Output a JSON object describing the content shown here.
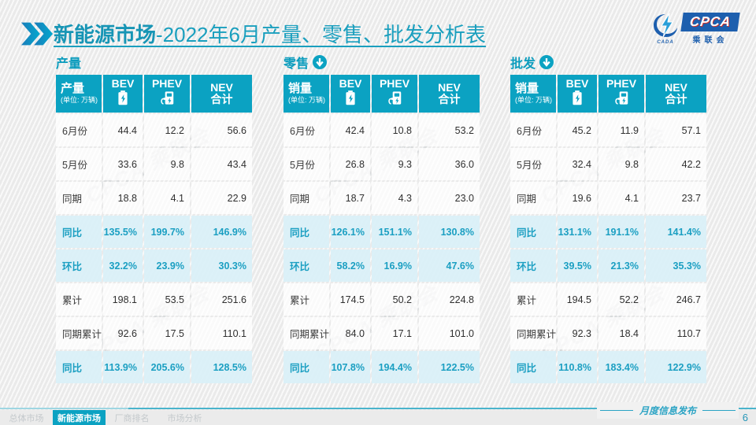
{
  "title": {
    "prefix": "新能源市场",
    "rest": "-2022年6月产量、零售、批发分析表"
  },
  "logo": {
    "cpca": "CPCA",
    "sub": "乘联会",
    "cada": "CADA"
  },
  "columns": {
    "bev": "BEV",
    "phev": "PHEV",
    "nev_line1": "NEV",
    "nev_line2": "合计"
  },
  "unit_label": "(单位: 万辆)",
  "watermark": "CPCA 乘联会",
  "colors": {
    "accent_teal": "#0ba2c2",
    "highlight_bg": "#daf0f8",
    "highlight_text": "#1b9fc2",
    "logo_blue": "#1d5fae",
    "logo_red": "#d03028"
  },
  "tables": [
    {
      "section": "产量",
      "arrow": false,
      "measure": "产量",
      "rows": [
        {
          "label": "6月份",
          "bev": "44.4",
          "phev": "12.2",
          "nev": "56.6",
          "highlight": false
        },
        {
          "label": "5月份",
          "bev": "33.6",
          "phev": "9.8",
          "nev": "43.4",
          "highlight": false
        },
        {
          "label": "同期",
          "bev": "18.8",
          "phev": "4.1",
          "nev": "22.9",
          "highlight": false
        },
        {
          "label": "同比",
          "bev": "135.5%",
          "phev": "199.7%",
          "nev": "146.9%",
          "highlight": true
        },
        {
          "label": "环比",
          "bev": "32.2%",
          "phev": "23.9%",
          "nev": "30.3%",
          "highlight": true
        },
        {
          "label": "累计",
          "bev": "198.1",
          "phev": "53.5",
          "nev": "251.6",
          "highlight": false
        },
        {
          "label": "同期累计",
          "bev": "92.6",
          "phev": "17.5",
          "nev": "110.1",
          "highlight": false
        },
        {
          "label": "同比",
          "bev": "113.9%",
          "phev": "205.6%",
          "nev": "128.5%",
          "highlight": true
        }
      ]
    },
    {
      "section": "零售",
      "arrow": true,
      "measure": "销量",
      "rows": [
        {
          "label": "6月份",
          "bev": "42.4",
          "phev": "10.8",
          "nev": "53.2",
          "highlight": false
        },
        {
          "label": "5月份",
          "bev": "26.8",
          "phev": "9.3",
          "nev": "36.0",
          "highlight": false
        },
        {
          "label": "同期",
          "bev": "18.7",
          "phev": "4.3",
          "nev": "23.0",
          "highlight": false
        },
        {
          "label": "同比",
          "bev": "126.1%",
          "phev": "151.1%",
          "nev": "130.8%",
          "highlight": true
        },
        {
          "label": "环比",
          "bev": "58.2%",
          "phev": "16.9%",
          "nev": "47.6%",
          "highlight": true
        },
        {
          "label": "累计",
          "bev": "174.5",
          "phev": "50.2",
          "nev": "224.8",
          "highlight": false
        },
        {
          "label": "同期累计",
          "bev": "84.0",
          "phev": "17.1",
          "nev": "101.0",
          "highlight": false
        },
        {
          "label": "同比",
          "bev": "107.8%",
          "phev": "194.4%",
          "nev": "122.5%",
          "highlight": true
        }
      ]
    },
    {
      "section": "批发",
      "arrow": true,
      "measure": "销量",
      "rows": [
        {
          "label": "6月份",
          "bev": "45.2",
          "phev": "11.9",
          "nev": "57.1",
          "highlight": false
        },
        {
          "label": "5月份",
          "bev": "32.4",
          "phev": "9.8",
          "nev": "42.2",
          "highlight": false
        },
        {
          "label": "同期",
          "bev": "19.6",
          "phev": "4.1",
          "nev": "23.7",
          "highlight": false
        },
        {
          "label": "同比",
          "bev": "131.1%",
          "phev": "191.1%",
          "nev": "141.4%",
          "highlight": true
        },
        {
          "label": "环比",
          "bev": "39.5%",
          "phev": "21.3%",
          "nev": "35.3%",
          "highlight": true
        },
        {
          "label": "累计",
          "bev": "194.5",
          "phev": "52.2",
          "nev": "246.7",
          "highlight": false
        },
        {
          "label": "同期累计",
          "bev": "92.3",
          "phev": "18.4",
          "nev": "110.7",
          "highlight": false
        },
        {
          "label": "同比",
          "bev": "110.8%",
          "phev": "183.4%",
          "nev": "122.9%",
          "highlight": true
        }
      ]
    }
  ],
  "footer": {
    "tabs": [
      {
        "label": "总体市场",
        "active": false
      },
      {
        "label": "新能源市场",
        "active": true
      },
      {
        "label": "厂商排名",
        "active": false
      },
      {
        "label": "市场分析",
        "active": false
      }
    ],
    "note": "月度信息发布",
    "page": "6"
  }
}
